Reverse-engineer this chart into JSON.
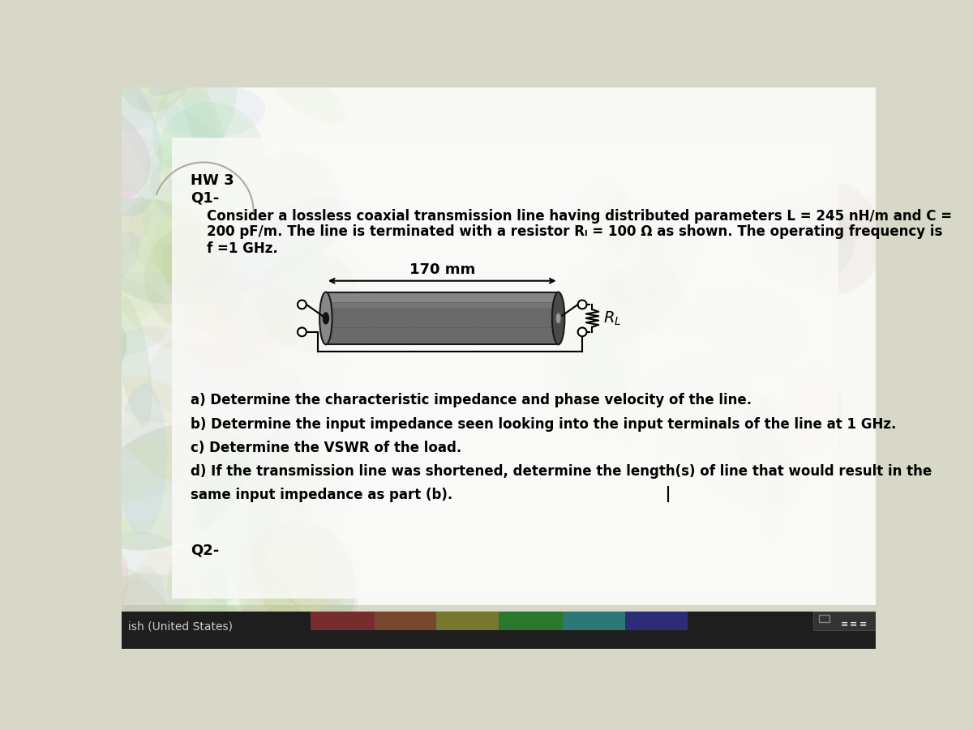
{
  "title": "HW 3",
  "subtitle": "Q1-",
  "problem_text_line1": "Consider a lossless coaxial transmission line having distributed parameters L = 245 nH/m and C =",
  "problem_text_line2": "200 pF/m. The line is terminated with a resistor Rₗ = 100 Ω as shown. The operating frequency is",
  "problem_text_line3": "f =1 GHz.",
  "dimension_label": "170 mm",
  "part_a": "a) Determine the characteristic impedance and phase velocity of the line.",
  "part_b": "b) Determine the input impedance seen looking into the input terminals of the line at 1 GHz.",
  "part_c": "c) Determine the VSWR of the load.",
  "part_d_line1": "d) If the transmission line was shortened, determine the length(s) of line that would result in the",
  "part_d_line2": "same input impedance as part (b).",
  "q2_label": "Q2-",
  "footer_text": "ish (United States)",
  "bg_color": "#d8d8c8",
  "doc_bg": "#f0f0ea",
  "text_color": "#000000",
  "taskbar_color": "#2a2a2a",
  "taskbar_text_color": "#cccccc"
}
